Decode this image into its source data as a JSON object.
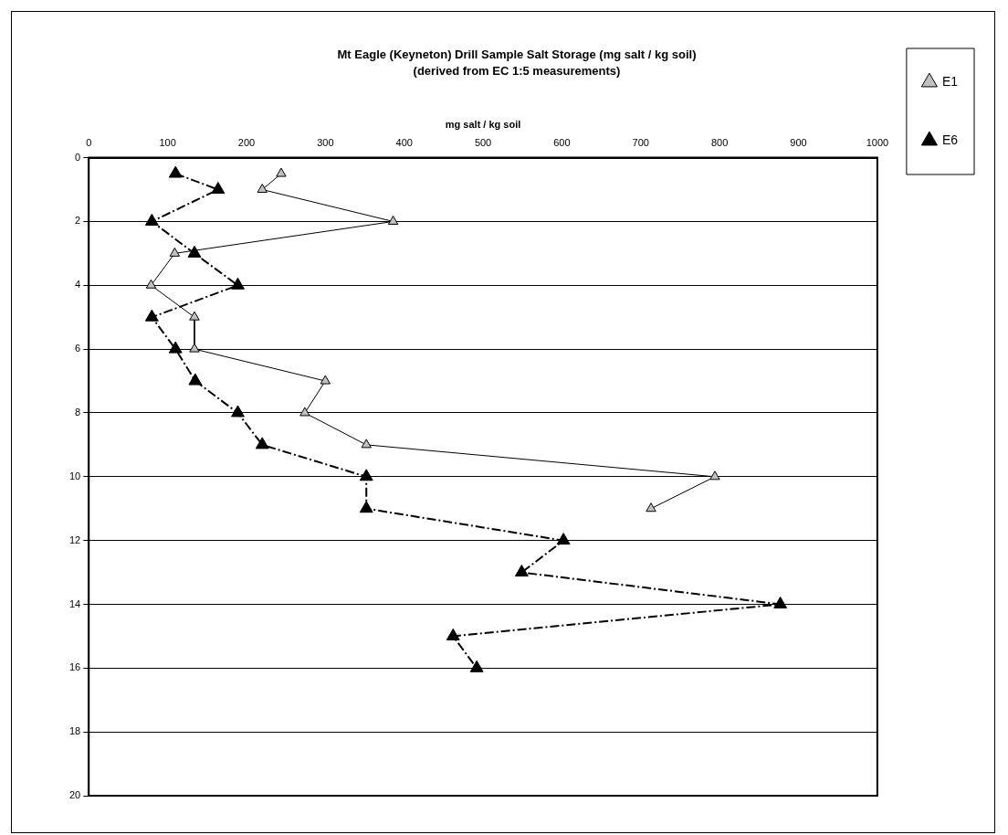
{
  "chart_data": {
    "type": "line",
    "title": "Mt Eagle (Keyneton) Drill Sample Salt Storage (mg salt / kg soil)",
    "subtitle": "(derived from EC 1:5 measurements)",
    "xlabel": "mg salt / kg soil",
    "xlim": [
      0,
      1000
    ],
    "xticks": [
      0,
      100,
      200,
      300,
      400,
      500,
      600,
      700,
      800,
      900,
      1000
    ],
    "ylim": [
      20,
      0
    ],
    "yticks": [
      0,
      2,
      4,
      6,
      8,
      10,
      12,
      14,
      16,
      18,
      20
    ],
    "grid": "y",
    "legend": "right",
    "marker": "triangle",
    "series": [
      {
        "name": "E1",
        "color": "#c0c0c0",
        "line_style": "solid",
        "x": [
          244,
          220,
          386,
          109,
          79,
          134,
          134,
          300,
          274,
          352,
          794,
          713
        ],
        "values": [
          0.5,
          1,
          2,
          3,
          4,
          5,
          6,
          7,
          8,
          9,
          10,
          11
        ]
      },
      {
        "name": "E6",
        "color": "#000000",
        "line_style": "dashed",
        "x": [
          110,
          164,
          80,
          134,
          189,
          80,
          110,
          135,
          189,
          220,
          352,
          352,
          602,
          549,
          877,
          462,
          492
        ],
        "values": [
          0.5,
          1,
          2,
          3,
          4,
          5,
          6,
          7,
          8,
          9,
          10,
          11,
          12,
          13,
          14,
          15,
          16
        ]
      }
    ]
  }
}
